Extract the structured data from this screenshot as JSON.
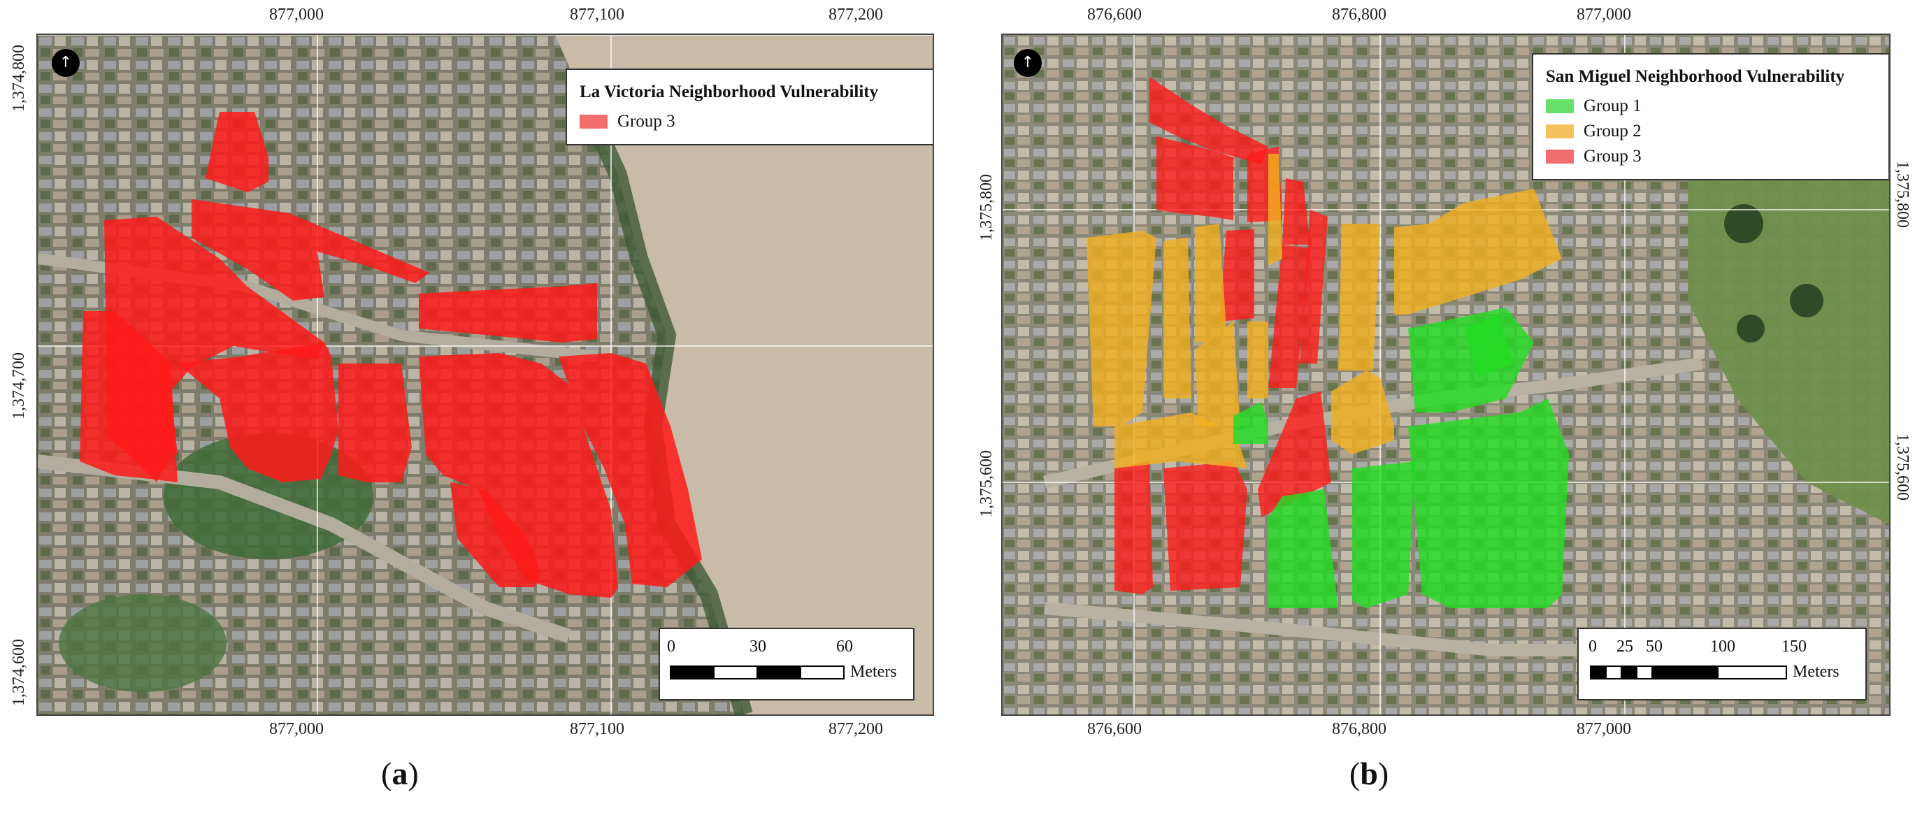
{
  "panel_a": {
    "label_open": "(",
    "label_letter": "a",
    "label_close": ")",
    "x_ticks": [
      "877,000",
      "877,100",
      "877,200"
    ],
    "y_ticks": [
      "1,374,800",
      "1,374,700",
      "1,374,600"
    ],
    "legend": {
      "title": "La Victoria Neighborhood Vulnerability",
      "items": [
        {
          "label": "Group 3",
          "color": "#f26d6d"
        }
      ]
    },
    "scalebar": {
      "labels": [
        "0",
        "30",
        "60"
      ],
      "units": "Meters"
    }
  },
  "panel_b": {
    "label_open": "(",
    "label_letter": "b",
    "label_close": ")",
    "x_ticks": [
      "876,600",
      "876,800",
      "877,000"
    ],
    "y_ticks": [
      "1,375,800",
      "1,375,600"
    ],
    "y_ticks_right": [
      "1,375,800",
      "1,375,600"
    ],
    "legend": {
      "title": "San Miguel Neighborhood Vulnerability",
      "items": [
        {
          "label": "Group 1",
          "color": "#66e066"
        },
        {
          "label": "Group 2",
          "color": "#f5c15a"
        },
        {
          "label": "Group 3",
          "color": "#f26d6d"
        }
      ]
    },
    "scalebar": {
      "labels": [
        "0",
        "25",
        "50",
        "100",
        "150"
      ],
      "units": "Meters"
    }
  },
  "colors": {
    "group1_fill": "#22dd22",
    "group2_fill": "#f0b020",
    "group3_fill": "#ff1a1a"
  }
}
